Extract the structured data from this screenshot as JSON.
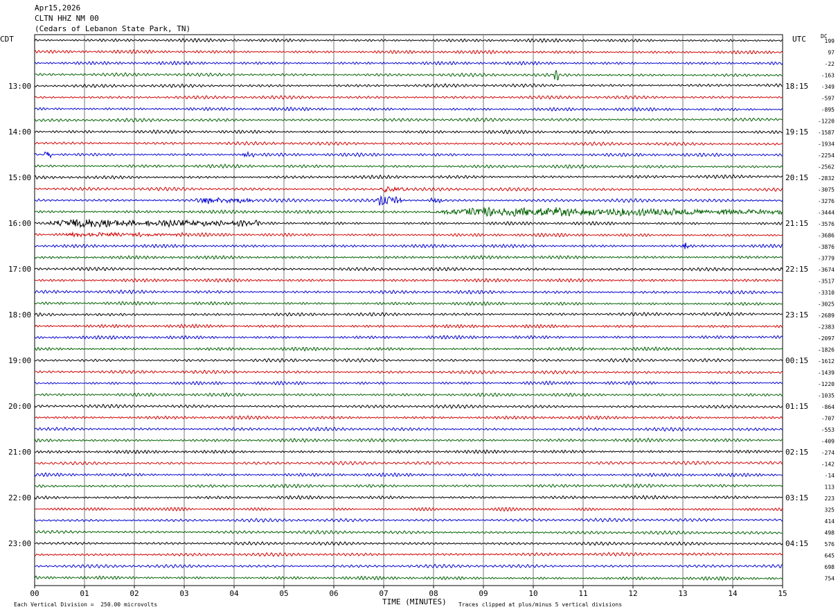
{
  "header": {
    "date": "Apr15,2026",
    "station": "CLTN HHZ NM 00",
    "location": "(Cedars of Lebanon State Park, TN)"
  },
  "left_zone": "CDT",
  "right_zone": "UTC",
  "dc_label": "DC",
  "footer": {
    "scale": "Each Vertical Division =  250.00 microvolts",
    "clip": "Traces clipped at plus/minus 5 vertical divisions"
  },
  "chart_data": {
    "type": "line",
    "title": "",
    "xlabel": "TIME (MINUTES)",
    "ylabel": "",
    "xlim": [
      0,
      15
    ],
    "x_ticks": [
      "00",
      "01",
      "02",
      "03",
      "04",
      "05",
      "06",
      "07",
      "08",
      "09",
      "10",
      "11",
      "12",
      "13",
      "14",
      "15"
    ],
    "grid": true,
    "rows_per_hour": 4,
    "trace_colors": [
      "#000000",
      "#d00000",
      "#0000d0",
      "#006000"
    ],
    "left_hour_labels": [
      "13:00",
      "14:00",
      "15:00",
      "16:00",
      "17:00",
      "18:00",
      "19:00",
      "20:00",
      "21:00",
      "22:00",
      "23:00"
    ],
    "right_hour_labels": [
      "18:15",
      "19:15",
      "20:15",
      "21:15",
      "22:15",
      "23:15",
      "00:15",
      "01:15",
      "02:15",
      "03:15",
      "04:15"
    ],
    "dc_offsets": [
      199,
      97,
      -22,
      -163,
      -349,
      -597,
      -895,
      -1220,
      -1587,
      -1934,
      -2254,
      -2562,
      -2832,
      -3075,
      -3276,
      -3444,
      -3576,
      -3686,
      -3876,
      -3779,
      -3674,
      -3517,
      -3310,
      -3025,
      -2689,
      -2383,
      -2097,
      -1826,
      -1612,
      -1439,
      -1220,
      -1035,
      -864,
      -707,
      -553,
      -409,
      -274,
      -142,
      -14,
      113,
      223,
      325,
      414,
      498,
      576,
      645,
      698,
      754
    ],
    "events": [
      {
        "row": 3,
        "minute": 10.4,
        "duration": 0.1,
        "amplitude": 4.5
      },
      {
        "row": 10,
        "minute": 0.2,
        "duration": 0.15,
        "amplitude": 2.5
      },
      {
        "row": 10,
        "minute": 4.1,
        "duration": 0.3,
        "amplitude": 1.2
      },
      {
        "row": 13,
        "minute": 6.9,
        "duration": 0.6,
        "amplitude": 1.5
      },
      {
        "row": 14,
        "minute": 3.2,
        "duration": 1.2,
        "amplitude": 1.5
      },
      {
        "row": 14,
        "minute": 6.85,
        "duration": 0.5,
        "amplitude": 3.0
      },
      {
        "row": 14,
        "minute": 7.9,
        "duration": 0.3,
        "amplitude": 1.5
      },
      {
        "row": 15,
        "minute": 7.8,
        "duration": 7.2,
        "amplitude": 2.0
      },
      {
        "row": 16,
        "minute": 0.0,
        "duration": 4.5,
        "amplitude": 1.8
      },
      {
        "row": 17,
        "minute": 0.3,
        "duration": 2.8,
        "amplitude": 0.8
      },
      {
        "row": 18,
        "minute": 13.0,
        "duration": 0.15,
        "amplitude": 2.0
      }
    ]
  }
}
